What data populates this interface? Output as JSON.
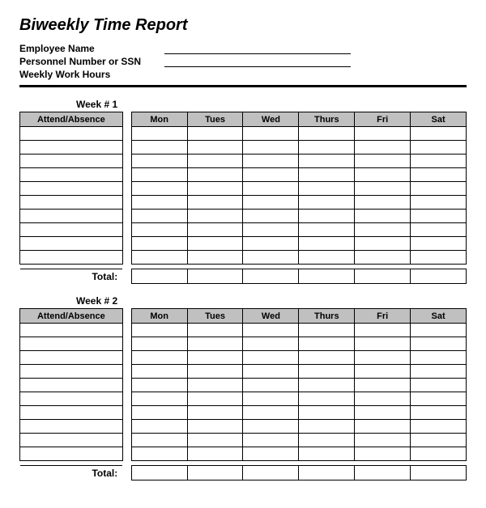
{
  "title": "Biweekly Time Report",
  "fields": {
    "employee_name_label": "Employee Name",
    "personnel_number_label": "Personnel Number or SSN",
    "weekly_hours_label": "Weekly Work Hours"
  },
  "week1": {
    "title": "Week # 1",
    "headers": [
      "Attend/Absence",
      "Mon",
      "Tues",
      "Wed",
      "Thurs",
      "Fri",
      "Sat"
    ],
    "rows": 10,
    "total_label": "Total:"
  },
  "week2": {
    "title": "Week # 2",
    "headers": [
      "Attend/Absence",
      "Mon",
      "Tues",
      "Wed",
      "Thurs",
      "Fri",
      "Sat"
    ],
    "rows": 10,
    "total_label": "Total:"
  },
  "colors": {
    "header_bg": "#c0c0c0",
    "border": "#000000",
    "background": "#ffffff"
  }
}
